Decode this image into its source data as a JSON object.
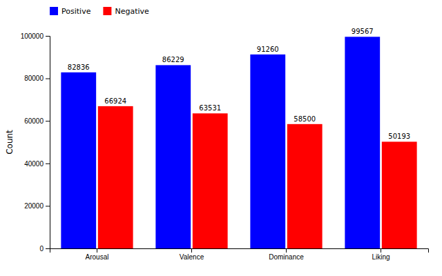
{
  "chart_data": {
    "type": "bar",
    "categories": [
      "Arousal",
      "Valence",
      "Dominance",
      "Liking"
    ],
    "series": [
      {
        "name": "Positive",
        "color": "#0000ff",
        "values": [
          82836,
          86229,
          91260,
          99567
        ]
      },
      {
        "name": "Negative",
        "color": "#ff0000",
        "values": [
          66924,
          63531,
          58500,
          50193
        ]
      }
    ],
    "ylabel": "Count",
    "ylim": [
      0,
      100000
    ],
    "yticks": [
      0,
      20000,
      40000,
      60000,
      80000,
      100000
    ],
    "legend": "upper left",
    "data_labels": true,
    "grid": false
  }
}
